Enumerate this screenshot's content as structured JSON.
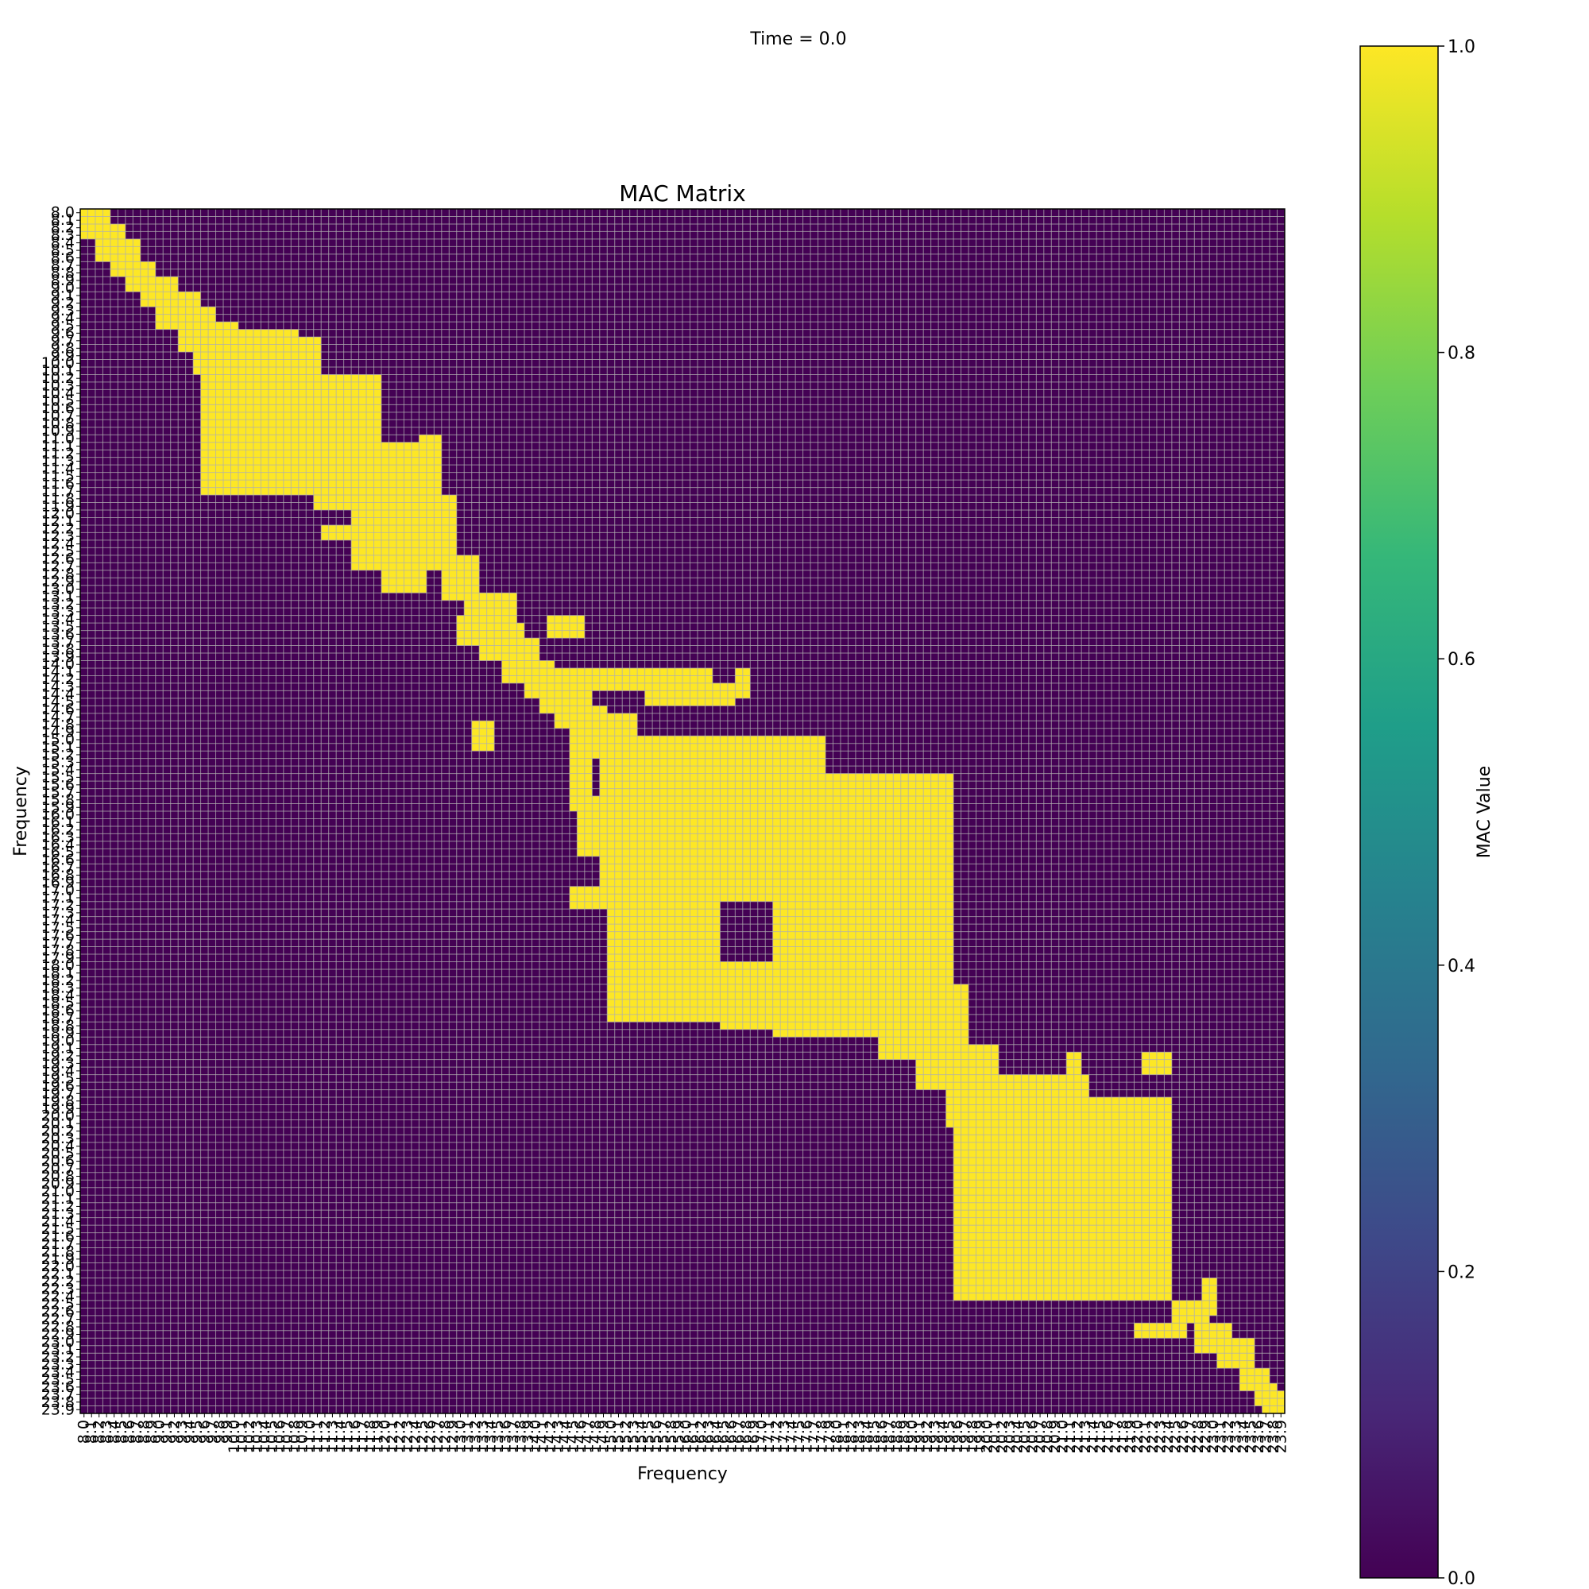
{
  "figure": {
    "suptitle": "Time = 0.0"
  },
  "chart_data": {
    "type": "heatmap",
    "title": "MAC Matrix",
    "xlabel": "Frequency",
    "ylabel": "Frequency",
    "axis_range": [
      8.0,
      23.9
    ],
    "axis_step": 0.1,
    "x_ticklabels": [
      "8.0",
      "8.1",
      "8.2",
      "8.3",
      "8.4",
      "8.5",
      "8.6",
      "8.7",
      "8.8",
      "8.9",
      "9.0",
      "9.1",
      "9.2",
      "9.3",
      "9.4",
      "9.5",
      "9.6",
      "9.7",
      "9.8",
      "9.9",
      "10.0",
      "10.1",
      "10.2",
      "10.3",
      "10.4",
      "10.5",
      "10.6",
      "10.7",
      "10.8",
      "10.9",
      "11.0",
      "11.1",
      "11.2",
      "11.3",
      "11.4",
      "11.5",
      "11.6",
      "11.7",
      "11.8",
      "11.9",
      "12.0",
      "12.1",
      "12.2",
      "12.3",
      "12.4",
      "12.5",
      "12.6",
      "12.7",
      "12.8",
      "12.9",
      "13.0",
      "13.1",
      "13.2",
      "13.3",
      "13.4",
      "13.5",
      "13.6",
      "13.7",
      "13.8",
      "13.9",
      "14.0",
      "14.1",
      "14.2",
      "14.3",
      "14.4",
      "14.5",
      "14.6",
      "14.7",
      "14.8",
      "14.9",
      "15.0",
      "15.1",
      "15.2",
      "15.3",
      "15.4",
      "15.5",
      "15.6",
      "15.7",
      "15.8",
      "15.9",
      "16.0",
      "16.1",
      "16.2",
      "16.3",
      "16.4",
      "16.5",
      "16.6",
      "16.7",
      "16.8",
      "16.9",
      "17.0",
      "17.1",
      "17.2",
      "17.3",
      "17.4",
      "17.5",
      "17.6",
      "17.7",
      "17.8",
      "17.9",
      "18.0",
      "18.1",
      "18.2",
      "18.3",
      "18.4",
      "18.5",
      "18.6",
      "18.7",
      "18.8",
      "18.9",
      "19.0",
      "19.1",
      "19.2",
      "19.3",
      "19.4",
      "19.5",
      "19.6",
      "19.7",
      "19.8",
      "19.9",
      "20.0",
      "20.1",
      "20.2",
      "20.3",
      "20.4",
      "20.5",
      "20.6",
      "20.7",
      "20.8",
      "20.9",
      "21.0",
      "21.1",
      "21.2",
      "21.3",
      "21.4",
      "21.5",
      "21.6",
      "21.7",
      "21.8",
      "21.9",
      "22.0",
      "22.1",
      "22.2",
      "22.3",
      "22.4",
      "22.5",
      "22.6",
      "22.7",
      "22.8",
      "22.9",
      "23.0",
      "23.1",
      "23.2",
      "23.3",
      "23.4",
      "23.5",
      "23.6",
      "23.7",
      "23.8",
      "23.9"
    ],
    "y_ticklabels": [
      "8.0",
      "8.1",
      "8.2",
      "8.3",
      "8.4",
      "8.5",
      "8.6",
      "8.7",
      "8.8",
      "8.9",
      "9.0",
      "9.1",
      "9.2",
      "9.3",
      "9.4",
      "9.5",
      "9.6",
      "9.7",
      "9.8",
      "9.9",
      "10.0",
      "10.1",
      "10.2",
      "10.3",
      "10.4",
      "10.5",
      "10.6",
      "10.7",
      "10.8",
      "10.9",
      "11.0",
      "11.1",
      "11.2",
      "11.3",
      "11.4",
      "11.5",
      "11.6",
      "11.7",
      "11.8",
      "11.9",
      "12.0",
      "12.1",
      "12.2",
      "12.3",
      "12.4",
      "12.5",
      "12.6",
      "12.7",
      "12.8",
      "12.9",
      "13.0",
      "13.1",
      "13.2",
      "13.3",
      "13.4",
      "13.5",
      "13.6",
      "13.7",
      "13.8",
      "13.9",
      "14.0",
      "14.1",
      "14.2",
      "14.3",
      "14.4",
      "14.5",
      "14.6",
      "14.7",
      "14.8",
      "14.9",
      "15.0",
      "15.1",
      "15.2",
      "15.3",
      "15.4",
      "15.5",
      "15.6",
      "15.7",
      "15.8",
      "15.9",
      "16.0",
      "16.1",
      "16.2",
      "16.3",
      "16.4",
      "16.5",
      "16.6",
      "16.7",
      "16.8",
      "16.9",
      "17.0",
      "17.1",
      "17.2",
      "17.3",
      "17.4",
      "17.5",
      "17.6",
      "17.7",
      "17.8",
      "17.9",
      "18.0",
      "18.1",
      "18.2",
      "18.3",
      "18.4",
      "18.5",
      "18.6",
      "18.7",
      "18.8",
      "18.9",
      "19.0",
      "19.1",
      "19.2",
      "19.3",
      "19.4",
      "19.5",
      "19.6",
      "19.7",
      "19.8",
      "19.9",
      "20.0",
      "20.1",
      "20.2",
      "20.3",
      "20.4",
      "20.5",
      "20.6",
      "20.7",
      "20.8",
      "20.9",
      "21.0",
      "21.1",
      "21.2",
      "21.3",
      "21.4",
      "21.5",
      "21.6",
      "21.7",
      "21.8",
      "21.9",
      "22.0",
      "22.1",
      "22.2",
      "22.3",
      "22.4",
      "22.5",
      "22.6",
      "22.7",
      "22.8",
      "22.9",
      "23.0",
      "23.1",
      "23.2",
      "23.3",
      "23.4",
      "23.5",
      "23.6",
      "23.7",
      "23.8",
      "23.9"
    ],
    "value_range": [
      0.0,
      1.0
    ],
    "colormap": "viridis",
    "colormap_stops": [
      "#440154",
      "#482878",
      "#3e4989",
      "#31688e",
      "#26828e",
      "#1f9e89",
      "#35b779",
      "#6ece58",
      "#b5de2b",
      "#fde725"
    ],
    "high_value_color": "#fde725",
    "low_value_color": "#440154",
    "grid": true,
    "grid_color": "#b0b0b0",
    "colorbar": {
      "label": "MAC Value",
      "ticks": [
        "0.0",
        "0.2",
        "0.4",
        "0.6",
        "0.8",
        "1.0"
      ],
      "placement": "right"
    },
    "note_values": "MAC value per (x frequency, y frequency) cell; cells inside the listed regions (inclusive frequency ranges) are approximately 1.0, all other cells approximately 0.0",
    "high_value_regions": [
      {
        "x": [
          8.0,
          8.3
        ],
        "y": [
          8.0,
          8.3
        ]
      },
      {
        "x": [
          8.2,
          8.5
        ],
        "y": [
          8.2,
          8.6
        ]
      },
      {
        "x": [
          8.4,
          8.7
        ],
        "y": [
          8.4,
          8.8
        ]
      },
      {
        "x": [
          8.6,
          8.9
        ],
        "y": [
          8.7,
          9.0
        ]
      },
      {
        "x": [
          8.8,
          9.2
        ],
        "y": [
          8.9,
          9.2
        ]
      },
      {
        "x": [
          9.0,
          9.5
        ],
        "y": [
          9.1,
          9.5
        ]
      },
      {
        "x": [
          9.3,
          9.7
        ],
        "y": [
          9.3,
          9.8
        ]
      },
      {
        "x": [
          9.5,
          10.0
        ],
        "y": [
          9.5,
          10.1
        ]
      },
      {
        "x": [
          9.6,
          11.1
        ],
        "y": [
          9.7,
          11.7
        ]
      },
      {
        "x": [
          10.1,
          10.8
        ],
        "y": [
          9.6,
          10.0
        ]
      },
      {
        "x": [
          10.9,
          11.1
        ],
        "y": [
          9.7,
          9.9
        ]
      },
      {
        "x": [
          11.1,
          11.9
        ],
        "y": [
          10.2,
          11.9
        ]
      },
      {
        "x": [
          11.8,
          12.6
        ],
        "y": [
          11.5,
          12.5
        ]
      },
      {
        "x": [
          12.0,
          12.7
        ],
        "y": [
          11.1,
          12.7
        ]
      },
      {
        "x": [
          12.5,
          12.7
        ],
        "y": [
          11.0,
          11.6
        ]
      },
      {
        "x": [
          11.6,
          12.9
        ],
        "y": [
          11.8,
          12.7
        ]
      },
      {
        "x": [
          11.2,
          12.5
        ],
        "y": [
          12.2,
          12.3
        ]
      },
      {
        "x": [
          12.0,
          12.5
        ],
        "y": [
          12.7,
          13.0
        ]
      },
      {
        "x": [
          12.8,
          13.2
        ],
        "y": [
          12.6,
          13.1
        ]
      },
      {
        "x": [
          13.1,
          13.7
        ],
        "y": [
          13.1,
          13.6
        ]
      },
      {
        "x": [
          13.0,
          13.3
        ],
        "y": [
          13.4,
          13.7
        ]
      },
      {
        "x": [
          13.3,
          13.8
        ],
        "y": [
          13.5,
          13.9
        ]
      },
      {
        "x": [
          13.6,
          14.0
        ],
        "y": [
          13.7,
          14.2
        ]
      },
      {
        "x": [
          13.9,
          14.2
        ],
        "y": [
          14.0,
          14.4
        ]
      },
      {
        "x": [
          14.1,
          14.5
        ],
        "y": [
          14.2,
          14.6
        ]
      },
      {
        "x": [
          14.3,
          14.7
        ],
        "y": [
          14.4,
          14.8
        ]
      },
      {
        "x": [
          14.5,
          14.9
        ],
        "y": [
          14.6,
          15.0
        ]
      },
      {
        "x": [
          14.7,
          15.3
        ],
        "y": [
          14.7,
          15.2
        ]
      },
      {
        "x": [
          14.9,
          17.8
        ],
        "y": [
          15.0,
          17.1
        ]
      },
      {
        "x": [
          17.8,
          19.5
        ],
        "y": [
          15.5,
          17.1
        ]
      },
      {
        "x": [
          15.0,
          16.4
        ],
        "y": [
          17.0,
          18.7
        ]
      },
      {
        "x": [
          16.5,
          17.3
        ],
        "y": [
          18.0,
          18.8
        ]
      },
      {
        "x": [
          17.2,
          19.5
        ],
        "y": [
          17.1,
          18.9
        ]
      },
      {
        "x": [
          18.6,
          19.7
        ],
        "y": [
          18.3,
          19.2
        ]
      },
      {
        "x": [
          19.1,
          20.1
        ],
        "y": [
          19.1,
          19.6
        ]
      },
      {
        "x": [
          19.5,
          21.3
        ],
        "y": [
          19.5,
          20.1
        ]
      },
      {
        "x": [
          19.6,
          22.4
        ],
        "y": [
          19.8,
          22.4
        ]
      },
      {
        "x": [
          19.7,
          20.0
        ],
        "y": [
          21.1,
          22.3
        ]
      },
      {
        "x": [
          22.5,
          22.9
        ],
        "y": [
          22.5,
          22.7
        ]
      },
      {
        "x": [
          22.0,
          22.6
        ],
        "y": [
          22.8,
          22.9
        ]
      },
      {
        "x": [
          22.8,
          23.2
        ],
        "y": [
          22.8,
          23.1
        ]
      },
      {
        "x": [
          23.1,
          23.5
        ],
        "y": [
          23.0,
          23.3
        ]
      },
      {
        "x": [
          23.4,
          23.7
        ],
        "y": [
          23.4,
          23.6
        ]
      },
      {
        "x": [
          23.6,
          23.8
        ],
        "y": [
          23.6,
          23.8
        ]
      },
      {
        "x": [
          23.7,
          23.9
        ],
        "y": [
          23.7,
          23.9
        ]
      },
      {
        "x": [
          14.5,
          14.7
        ],
        "y": [
          15.0,
          15.9
        ]
      },
      {
        "x": [
          14.6,
          14.8
        ],
        "y": [
          15.8,
          16.5
        ]
      },
      {
        "x": [
          14.5,
          14.9
        ],
        "y": [
          17.0,
          17.2
        ]
      },
      {
        "x": [
          13.2,
          13.4
        ],
        "y": [
          14.8,
          15.1
        ]
      },
      {
        "x": [
          14.2,
          14.6
        ],
        "y": [
          13.4,
          13.6
        ]
      },
      {
        "x": [
          14.3,
          16.3
        ],
        "y": [
          14.1,
          14.3
        ]
      },
      {
        "x": [
          15.5,
          16.6
        ],
        "y": [
          14.3,
          14.5
        ]
      },
      {
        "x": [
          16.7,
          16.8
        ],
        "y": [
          14.1,
          14.4
        ]
      },
      {
        "x": [
          21.1,
          21.2
        ],
        "y": [
          19.2,
          19.6
        ]
      },
      {
        "x": [
          22.1,
          22.4
        ],
        "y": [
          19.2,
          19.4
        ]
      },
      {
        "x": [
          22.9,
          23.0
        ],
        "y": [
          22.2,
          22.6
        ]
      }
    ]
  }
}
